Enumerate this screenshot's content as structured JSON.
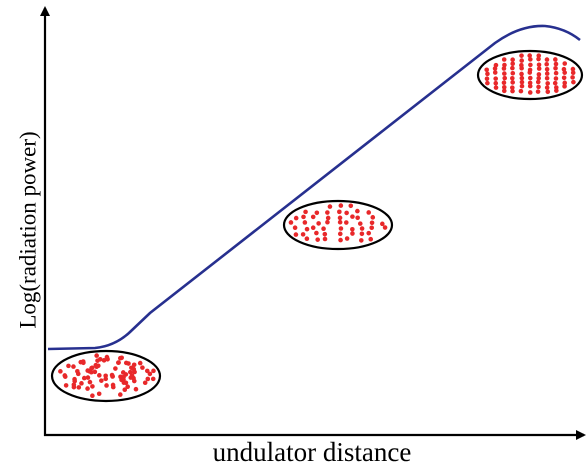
{
  "axes": {
    "y_label": "Log(radiation power)",
    "x_label": "undulator distance"
  }
}
